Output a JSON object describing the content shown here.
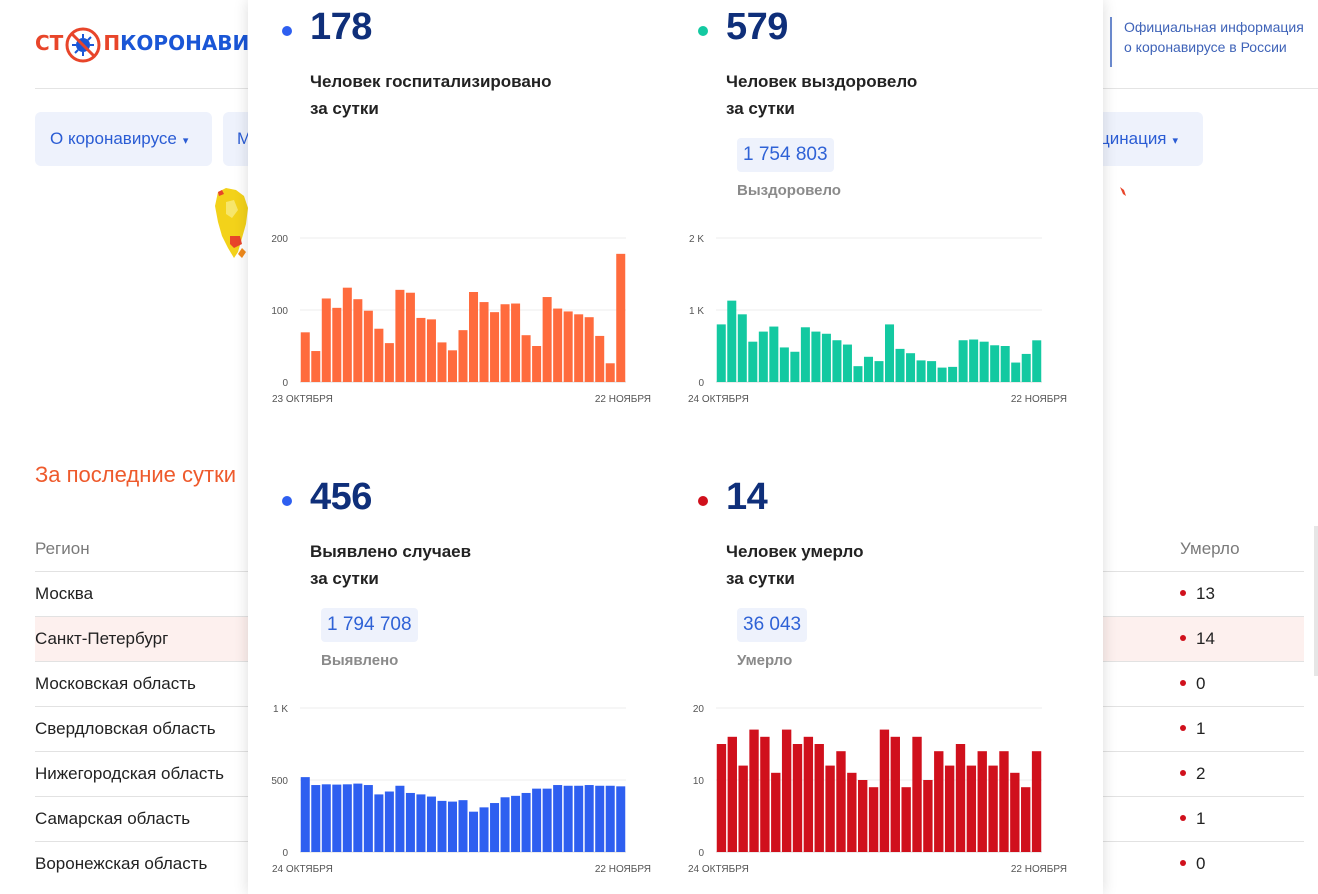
{
  "header": {
    "logo_part1": "СТ",
    "logo_part2": "П",
    "logo_part3": "КОРОНАВИ",
    "official_line1": "Официальная информация",
    "official_line2": "о коронавирусе в России"
  },
  "nav": [
    {
      "label": "О коронавирусе",
      "caret": "▾"
    },
    {
      "label": "М",
      "caret": ""
    },
    {
      "label": "цинация",
      "caret": "▾"
    }
  ],
  "table": {
    "title": "За последние сутки",
    "col_region": "Регион",
    "col_dead": "Умерло",
    "rows": [
      {
        "region": "Москва",
        "dead": "13"
      },
      {
        "region": "Санкт-Петербург",
        "dead": "14"
      },
      {
        "region": "Московская область",
        "dead": "0"
      },
      {
        "region": "Свердловская область",
        "dead": "1"
      },
      {
        "region": "Нижегородская область",
        "dead": "2"
      },
      {
        "region": "Самарская область",
        "dead": "1"
      },
      {
        "region": "Воронежская область",
        "dead": "0"
      }
    ]
  },
  "colors": {
    "hospitalized": "#ff6b3d",
    "recovered": "#13c9a1",
    "cases": "#2e5ff0",
    "deaths": "#d0101c",
    "big_number": "#0f2f7a",
    "accent_link": "#2a5cd4"
  },
  "panels": [
    {
      "id": "hospitalized",
      "big": "178",
      "desc_line1": "Человек госпитализировано",
      "desc_line2": "за сутки",
      "total": "",
      "total_label": "",
      "color": "#ff6b3d",
      "dot": "#2e5ff0"
    },
    {
      "id": "recovered",
      "big": "579",
      "desc_line1": "Человек выздоровело",
      "desc_line2": "за сутки",
      "total": "1 754 803",
      "total_label": "Выздоровело",
      "color": "#13c9a1",
      "dot": "#13c9a1"
    },
    {
      "id": "cases",
      "big": "456",
      "desc_line1": "Выявлено случаев",
      "desc_line2": "за сутки",
      "total": "1 794 708",
      "total_label": "Выявлено",
      "color": "#2e5ff0",
      "dot": "#2e5ff0"
    },
    {
      "id": "deaths",
      "big": "14",
      "desc_line1": "Человек умерло",
      "desc_line2": "за сутки",
      "total": "36 043",
      "total_label": "Умерло",
      "color": "#d0101c",
      "dot": "#d0101c"
    }
  ],
  "chart_data": [
    {
      "type": "bar",
      "title": "",
      "x_start_label": "23 ОКТЯБРЯ",
      "x_end_label": "22 НОЯБРЯ",
      "ylim": [
        0,
        200
      ],
      "yticks": [
        0,
        100,
        200
      ],
      "ytick_labels": [
        "0",
        "100",
        "200"
      ],
      "grid": true,
      "values": [
        69,
        43,
        116,
        103,
        131,
        115,
        99,
        74,
        54,
        128,
        124,
        89,
        87,
        55,
        44,
        72,
        125,
        111,
        97,
        108,
        109,
        65,
        50,
        118,
        102,
        98,
        94,
        90,
        64,
        26,
        178
      ]
    },
    {
      "type": "bar",
      "title": "",
      "x_start_label": "24 ОКТЯБРЯ",
      "x_end_label": "22 НОЯБРЯ",
      "ylim": [
        0,
        2000
      ],
      "yticks": [
        0,
        1000,
        2000
      ],
      "ytick_labels": [
        "0",
        "1 K",
        "2 K"
      ],
      "grid": true,
      "values": [
        800,
        1130,
        940,
        560,
        700,
        770,
        480,
        420,
        760,
        700,
        670,
        580,
        520,
        220,
        350,
        290,
        800,
        460,
        400,
        300,
        290,
        200,
        210,
        580,
        590,
        560,
        510,
        500,
        270,
        390,
        579
      ]
    },
    {
      "type": "bar",
      "title": "",
      "x_start_label": "24 ОКТЯБРЯ",
      "x_end_label": "22 НОЯБРЯ",
      "ylim": [
        0,
        1000
      ],
      "yticks": [
        0,
        500,
        1000
      ],
      "ytick_labels": [
        "0",
        "500",
        "1 K"
      ],
      "grid": true,
      "values": [
        520,
        465,
        470,
        468,
        470,
        475,
        465,
        400,
        420,
        460,
        410,
        400,
        385,
        355,
        350,
        360,
        280,
        310,
        340,
        380,
        390,
        410,
        440,
        440,
        465,
        460,
        460,
        465,
        460,
        460,
        456
      ]
    },
    {
      "type": "bar",
      "title": "",
      "x_start_label": "24 ОКТЯБРЯ",
      "x_end_label": "22 НОЯБРЯ",
      "ylim": [
        0,
        20
      ],
      "yticks": [
        0,
        10,
        20
      ],
      "ytick_labels": [
        "0",
        "10",
        "20"
      ],
      "grid": true,
      "values": [
        15,
        16,
        12,
        17,
        16,
        11,
        17,
        15,
        16,
        15,
        12,
        14,
        11,
        10,
        9,
        17,
        16,
        9,
        16,
        10,
        14,
        12,
        15,
        12,
        14,
        12,
        14,
        11,
        9,
        14
      ]
    }
  ]
}
